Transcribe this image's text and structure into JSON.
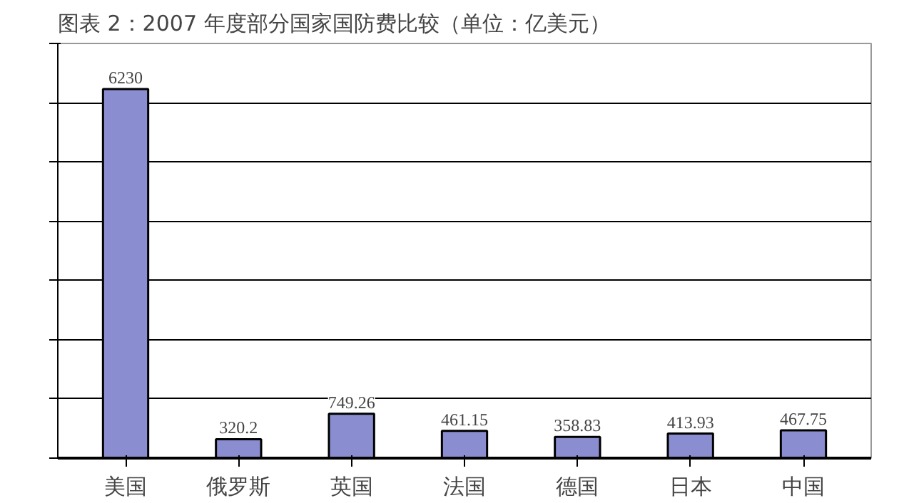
{
  "chart_data": {
    "type": "bar",
    "title": "图表 2：2007 年度部分国家国防费比较（单位：亿美元）",
    "categories": [
      "美国",
      "俄罗斯",
      "英国",
      "法国",
      "德国",
      "日本",
      "中国"
    ],
    "values": [
      6230,
      320.2,
      749.26,
      461.15,
      358.83,
      413.93,
      467.75
    ],
    "color": "#8a8ed0",
    "data_labels": true,
    "grid": "y",
    "tick_labels": "x",
    "ylim": [
      0,
      7000
    ],
    "yticks": [
      {
        "value": 0,
        "label": null
      },
      {
        "value": 1000,
        "label": null
      },
      {
        "value": 2000,
        "label": null
      },
      {
        "value": 3000,
        "label": null
      },
      {
        "value": 4000,
        "label": null
      },
      {
        "value": 5000,
        "label": null
      },
      {
        "value": 6000,
        "label": null
      },
      {
        "value": 7000,
        "label": null
      }
    ]
  }
}
